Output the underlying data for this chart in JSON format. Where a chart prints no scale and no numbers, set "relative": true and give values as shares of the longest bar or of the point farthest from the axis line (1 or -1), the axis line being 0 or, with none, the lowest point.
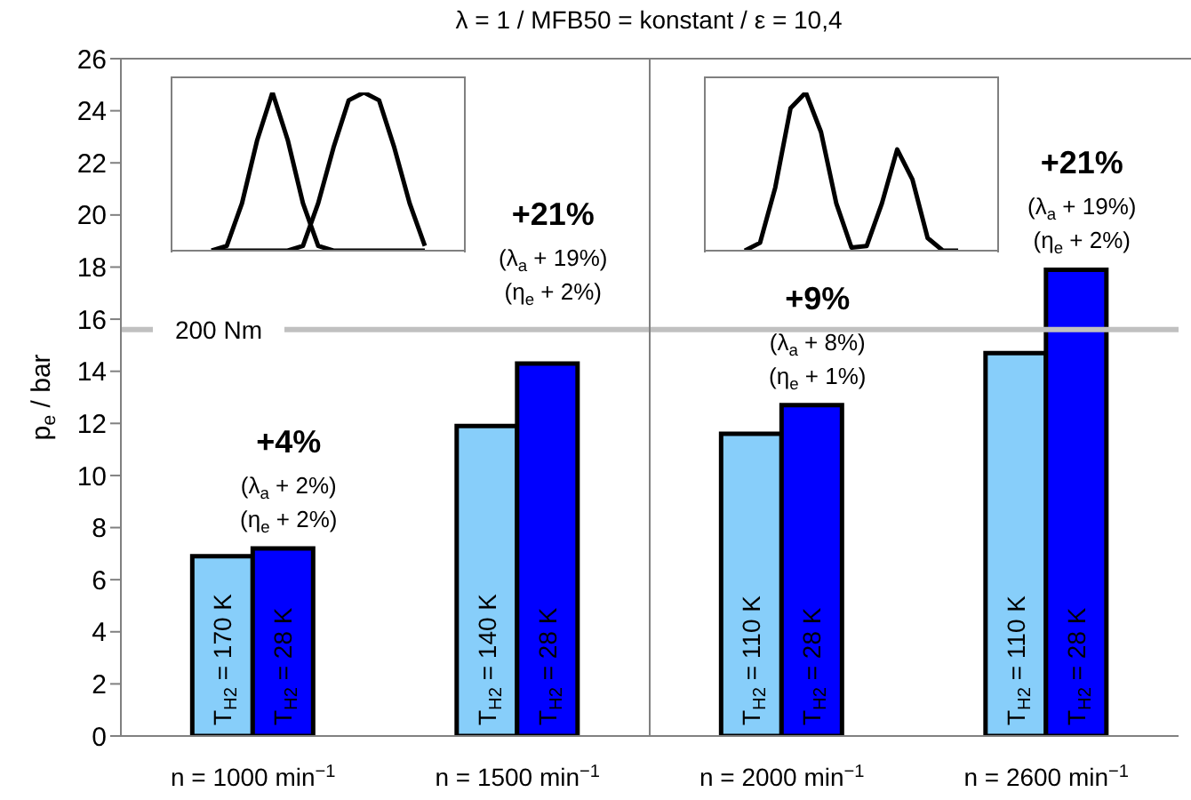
{
  "chart_data": [
    {
      "type": "bar",
      "title": "λ = 1 / MFB50 = konstant / ε = 10,4",
      "ylabel": "p$_{e}$ / bar",
      "categories": [
        "n = 1000 min$^{−1}$",
        "n = 1500 min$^{−1}$",
        "n = 2000 min$^{−1}$",
        "n = 2600 min$^{−1}$"
      ],
      "series": [
        {
          "color": "#87cefa",
          "values": [
            6.9,
            11.9,
            11.6,
            14.7
          ],
          "value_labels": [
            "T$_{H2}$ = 170 K",
            "T$_{H2}$ = 140 K",
            "T$_{H2}$ = 110 K",
            "T$_{H2}$ = 110 K"
          ]
        },
        {
          "color": "#0000ff",
          "values": [
            7.2,
            14.3,
            12.7,
            17.9
          ],
          "value_labels": [
            "T$_{H2}$ = 28 K",
            "T$_{H2}$ = 28 K",
            "T$_{H2}$ = 28 K",
            "T$_{H2}$ = 28 K"
          ]
        }
      ],
      "ylim": [
        0,
        26
      ],
      "yticks": [
        0,
        2,
        4,
        6,
        8,
        10,
        12,
        14,
        16,
        18,
        20,
        22,
        24,
        26
      ],
      "ref_lines": [
        {
          "axis": "y",
          "value": 15.6,
          "label": "200 Nm",
          "color": "#c0c0c0"
        }
      ],
      "annotations": [
        "+4%",
        "(λ$_{a}$ + 2%)",
        "(η$_{e}$ + 2%)",
        "+21%",
        "(λ$_{a}$ + 19%)",
        "(η$_{e}$ + 2%)",
        "+9%",
        "(λ$_{a}$ + 8%)",
        "(η$_{e}$ + 1%)",
        "+21%",
        "(λ$_{a}$ + 19%)",
        "(η$_{e}$ + 2%)"
      ]
    },
    {
      "type": "line",
      "relative": true,
      "categories": [
        null,
        null,
        null,
        null,
        null,
        null,
        null,
        null,
        null,
        null,
        null,
        null,
        null,
        null,
        null
      ],
      "series": [
        {
          "color": "#000000",
          "values": [
            0,
            0.03,
            0.3,
            0.7,
            1,
            0.7,
            0.3,
            0.03,
            0,
            0,
            0,
            0,
            0,
            0,
            0
          ]
        },
        {
          "color": "#000000",
          "values": [
            0,
            0,
            0,
            0,
            0,
            0,
            0.03,
            0.3,
            0.65,
            0.95,
            1,
            0.95,
            0.65,
            0.3,
            0.03
          ]
        }
      ]
    },
    {
      "type": "line",
      "relative": true,
      "categories": [
        null,
        null,
        null,
        null,
        null,
        null,
        null,
        null,
        null,
        null,
        null,
        null,
        null,
        null,
        null
      ],
      "series": [
        {
          "color": "#000000",
          "values": [
            0,
            0.05,
            0.4,
            0.9,
            1,
            0.75,
            0.3,
            0.02,
            0.03,
            0.3,
            0.64,
            0.45,
            0.08,
            0,
            0
          ]
        }
      ]
    }
  ]
}
